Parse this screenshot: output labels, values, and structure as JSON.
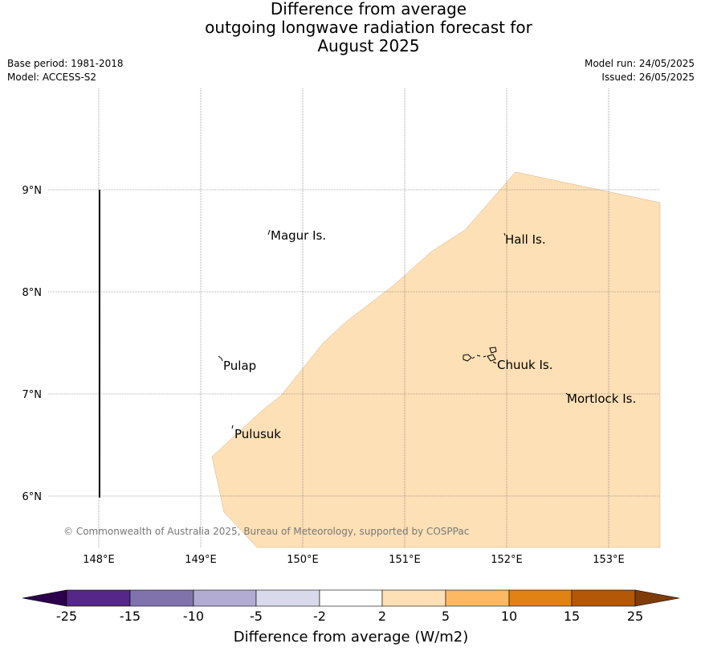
{
  "title": {
    "line1": "Difference from average",
    "line2": "outgoing longwave radiation forecast for",
    "line3": "August 2025"
  },
  "meta": {
    "base_period": "Base period: 1981-2018",
    "model": "Model: ACCESS-S2",
    "model_run": "Model run: 24/05/2025",
    "issued": "Issued: 26/05/2025"
  },
  "map": {
    "lon_ticks": [
      "148°E",
      "149°E",
      "150°E",
      "151°E",
      "152°E",
      "153°E"
    ],
    "lat_ticks": [
      "9°N",
      "8°N",
      "7°N",
      "6°N"
    ],
    "places": [
      "Magur Is.",
      "Hall Is.",
      "Pulap",
      "Chuuk Is.",
      "Mortlock Is.",
      "Pulusuk"
    ],
    "anomaly_fill_color": "#fde0b6",
    "copyright": "© Commonwealth of Australia 2025, Bureau of Meteorology, supported by COSPPac"
  },
  "colorbar": {
    "label": "Difference from average (W/m2)",
    "tick_labels": [
      "-25",
      "-15",
      "-10",
      "-5",
      "-2",
      "2",
      "5",
      "10",
      "15",
      "25"
    ],
    "colors": [
      "#2d004b",
      "#542788",
      "#8073ac",
      "#b2abd2",
      "#d8daeb",
      "#ffffff",
      "#fee0b6",
      "#fdb863",
      "#e08214",
      "#b35806",
      "#7f3b08"
    ]
  }
}
